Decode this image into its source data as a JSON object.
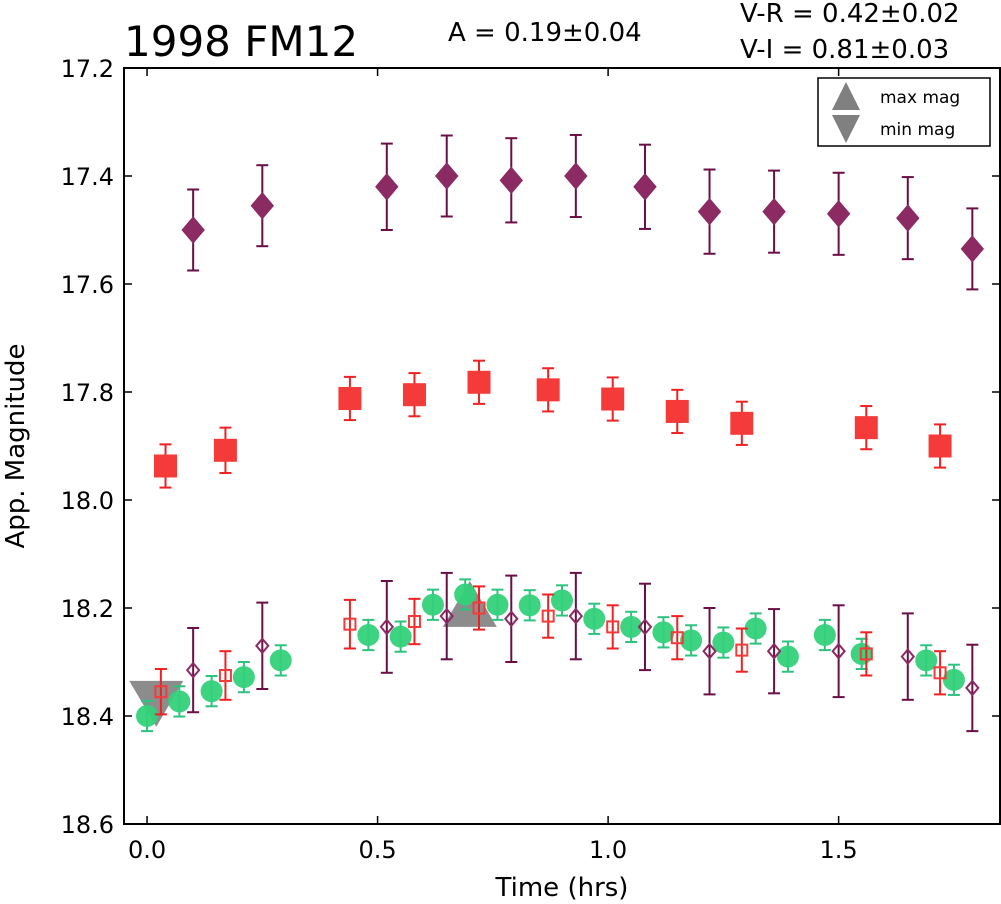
{
  "chart_data": {
    "type": "scatter",
    "title": "1998 FM12",
    "amplitude_text": "A  = 0.19±0.04",
    "color_text": [
      "V-R = 0.42±0.02",
      "V-I  = 0.81±0.03"
    ],
    "xlabel": "Time (hrs)",
    "ylabel": "App. Magnitude",
    "xlim": [
      -0.05,
      1.85
    ],
    "ylim": [
      18.6,
      17.2
    ],
    "x_ticks": [
      0.0,
      0.5,
      1.0,
      1.5
    ],
    "x_tick_labels": [
      "0.0",
      "0.5",
      "1.0",
      "1.5"
    ],
    "y_ticks": [
      17.2,
      17.4,
      17.6,
      17.8,
      18.0,
      18.2,
      18.4,
      18.6
    ],
    "y_tick_labels": [
      "17.2",
      "17.4",
      "17.6",
      "17.8",
      "18.0",
      "18.2",
      "18.4",
      "18.6"
    ],
    "grid": false,
    "legend_position": "top-right",
    "legend": [
      {
        "label": "max mag",
        "marker": "triangle-up",
        "color": "#808080"
      },
      {
        "label": "min mag",
        "marker": "triangle-down",
        "color": "#808080"
      }
    ],
    "series": [
      {
        "marker": "diamond",
        "filled": true,
        "color": "#8b2a63",
        "ecolor": "#6a0f45",
        "x": [
          0.1,
          0.25,
          0.52,
          0.65,
          0.79,
          0.93,
          1.08,
          1.22,
          1.36,
          1.5,
          1.65,
          1.79
        ],
        "y": [
          17.5,
          17.455,
          17.42,
          17.4,
          17.408,
          17.4,
          17.42,
          17.466,
          17.466,
          17.47,
          17.478,
          17.535
        ],
        "err": [
          0.075,
          0.075,
          0.08,
          0.075,
          0.078,
          0.076,
          0.078,
          0.078,
          0.076,
          0.076,
          0.076,
          0.075
        ]
      },
      {
        "marker": "square",
        "filled": true,
        "color": "#f53a3a",
        "ecolor": "#ee2222",
        "x": [
          0.04,
          0.17,
          0.44,
          0.58,
          0.72,
          0.87,
          1.01,
          1.15,
          1.29,
          1.56,
          1.72
        ],
        "y": [
          17.937,
          17.908,
          17.812,
          17.805,
          17.782,
          17.796,
          17.813,
          17.836,
          17.858,
          17.866,
          17.9
        ],
        "err": [
          0.04,
          0.042,
          0.04,
          0.04,
          0.04,
          0.04,
          0.04,
          0.04,
          0.04,
          0.04,
          0.04
        ]
      },
      {
        "marker": "circle",
        "filled": true,
        "color": "#33d17a",
        "ecolor": "#2ec27e",
        "x": [
          0.0,
          0.07,
          0.14,
          0.21,
          0.29,
          0.48,
          0.55,
          0.62,
          0.69,
          0.76,
          0.83,
          0.9,
          0.97,
          1.05,
          1.12,
          1.18,
          1.25,
          1.32,
          1.39,
          1.47,
          1.55,
          1.69,
          1.75
        ],
        "y": [
          18.4,
          18.373,
          18.354,
          18.328,
          18.297,
          18.25,
          18.253,
          18.194,
          18.175,
          18.194,
          18.195,
          18.186,
          18.22,
          18.235,
          18.245,
          18.26,
          18.264,
          18.238,
          18.29,
          18.25,
          18.285,
          18.297,
          18.333
        ],
        "err": [
          0.028,
          0.028,
          0.028,
          0.028,
          0.028,
          0.028,
          0.028,
          0.028,
          0.028,
          0.028,
          0.028,
          0.028,
          0.028,
          0.028,
          0.028,
          0.028,
          0.028,
          0.028,
          0.028,
          0.028,
          0.028,
          0.028,
          0.028
        ]
      },
      {
        "marker": "square",
        "filled": false,
        "color": "#f53a3a",
        "ecolor": "#ee2222",
        "x": [
          0.03,
          0.17,
          0.44,
          0.58,
          0.72,
          0.87,
          1.01,
          1.15,
          1.29,
          1.56,
          1.72
        ],
        "y": [
          18.355,
          18.325,
          18.23,
          18.225,
          18.2,
          18.215,
          18.235,
          18.255,
          18.278,
          18.285,
          18.32
        ],
        "err": [
          0.042,
          0.045,
          0.045,
          0.042,
          0.04,
          0.04,
          0.04,
          0.04,
          0.04,
          0.04,
          0.04
        ]
      },
      {
        "marker": "diamond",
        "filled": false,
        "color": "#8b2a63",
        "ecolor": "#6a0f45",
        "x": [
          0.1,
          0.25,
          0.52,
          0.65,
          0.79,
          0.93,
          1.08,
          1.22,
          1.36,
          1.5,
          1.65,
          1.79
        ],
        "y": [
          18.315,
          18.27,
          18.235,
          18.215,
          18.22,
          18.215,
          18.235,
          18.28,
          18.28,
          18.28,
          18.29,
          18.348
        ],
        "err": [
          0.078,
          0.08,
          0.085,
          0.08,
          0.08,
          0.08,
          0.08,
          0.08,
          0.078,
          0.085,
          0.08,
          0.08
        ]
      }
    ],
    "extremes": [
      {
        "kind": "max mag",
        "x": 0.7,
        "y": 18.2
      },
      {
        "kind": "min mag",
        "x": 0.02,
        "y": 18.37
      }
    ]
  }
}
